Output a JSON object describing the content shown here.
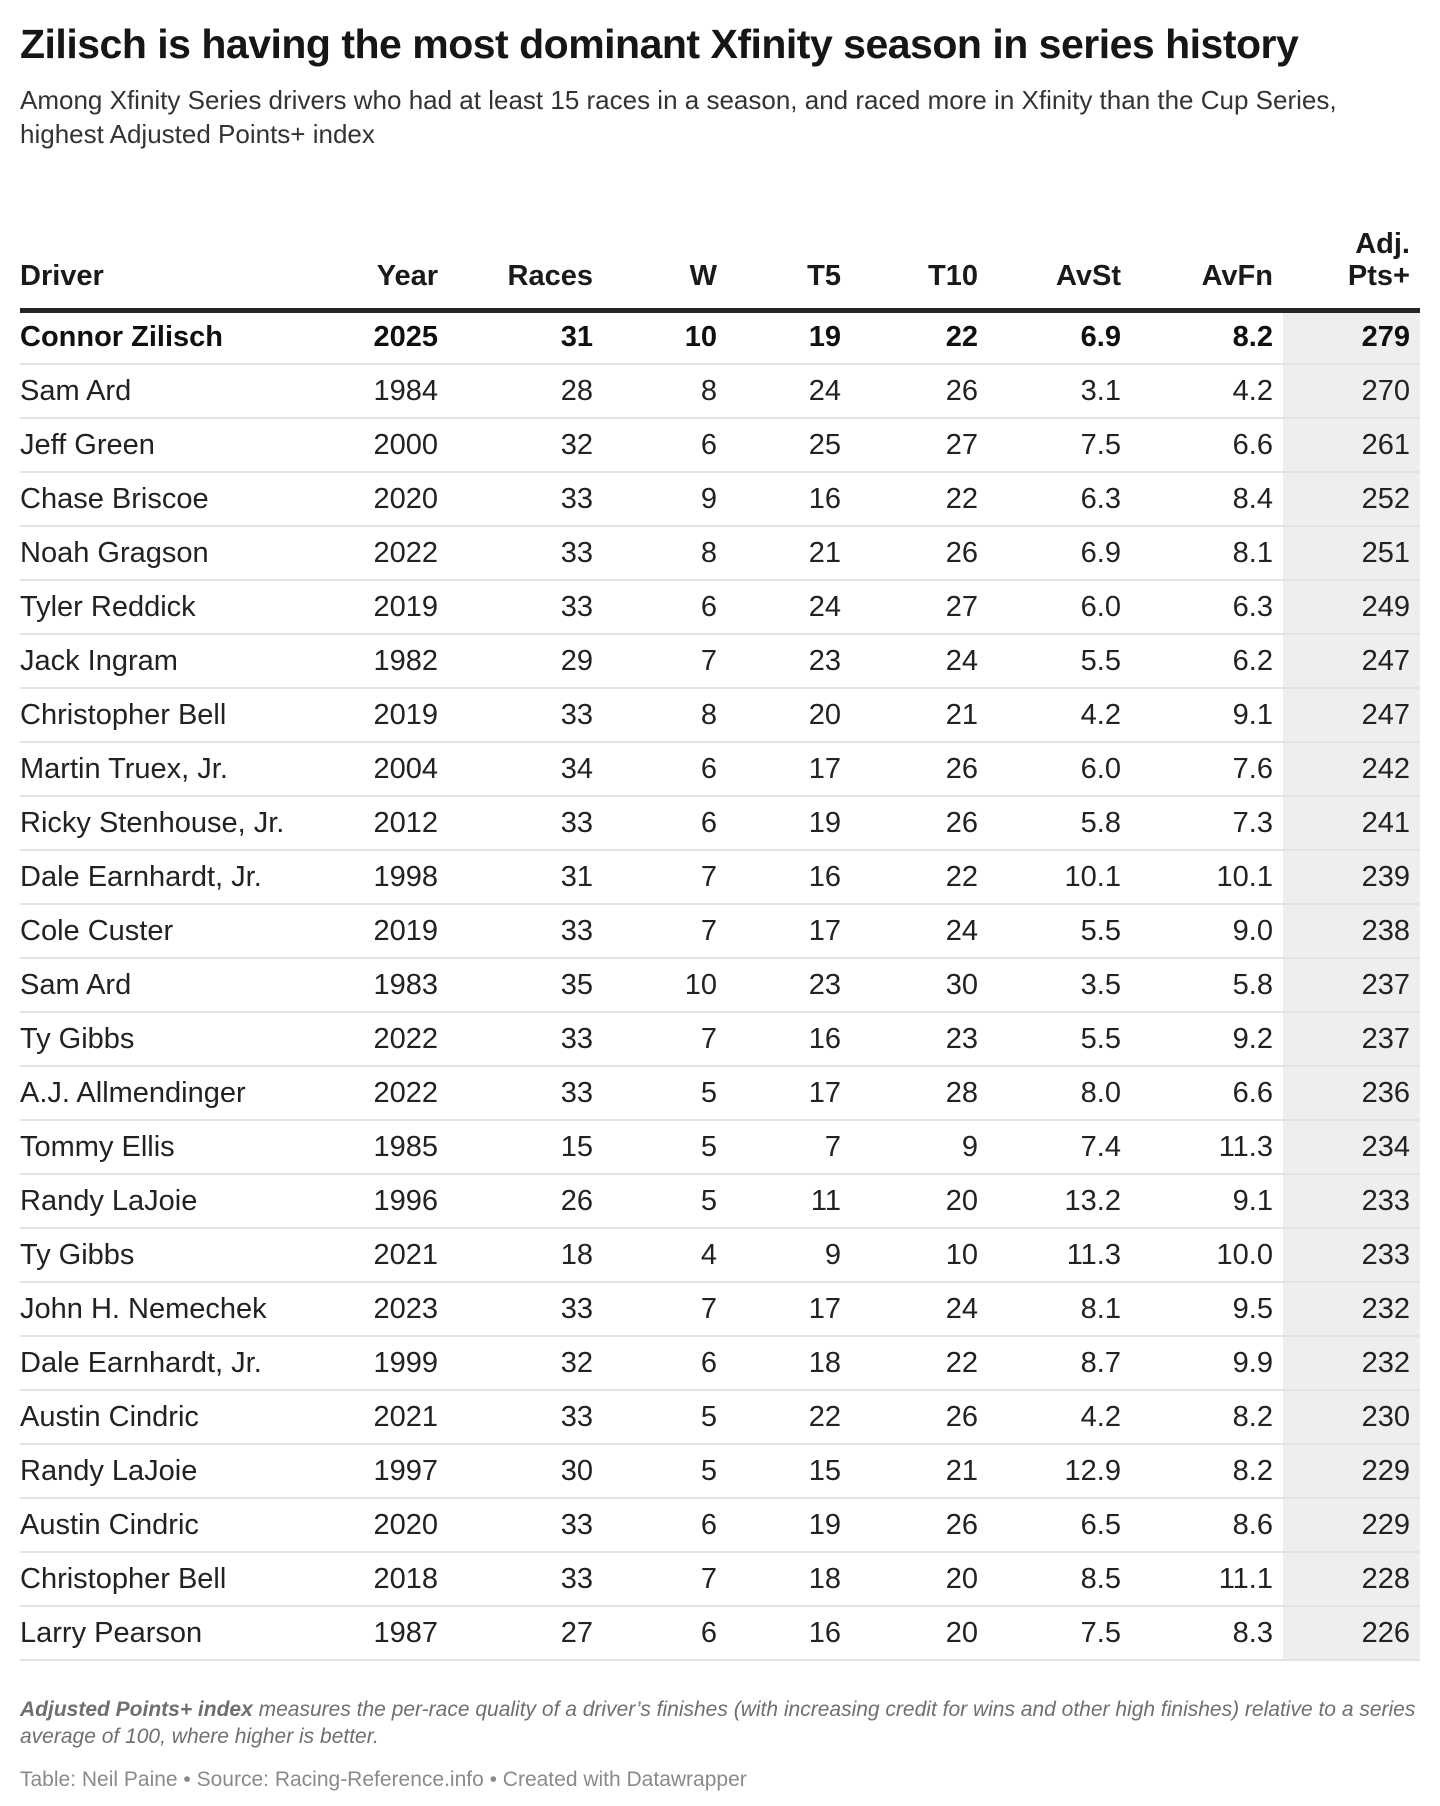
{
  "header": {
    "title": "Zilisch is having the most dominant Xfinity season in series history",
    "subtitle": "Among Xfinity Series drivers who had at least 15 races in a season, and raced more in Xfinity than the Cup Series, highest Adjusted Points+ index"
  },
  "chart_data": {
    "type": "table",
    "title": "Zilisch is having the most dominant Xfinity season in series history",
    "subtitle": "Among Xfinity Series drivers who had at least 15 races in a season, and raced more in Xfinity than the Cup Series, highest Adjusted Points+ index",
    "columns": [
      {
        "key": "driver",
        "label": "Driver",
        "align": "left",
        "highlight": false
      },
      {
        "key": "year",
        "label": "Year",
        "align": "right",
        "highlight": false
      },
      {
        "key": "races",
        "label": "Races",
        "align": "right",
        "highlight": false
      },
      {
        "key": "w",
        "label": "W",
        "align": "right",
        "highlight": false
      },
      {
        "key": "t5",
        "label": "T5",
        "align": "right",
        "highlight": false
      },
      {
        "key": "t10",
        "label": "T10",
        "align": "right",
        "highlight": false
      },
      {
        "key": "avst",
        "label": "AvSt",
        "align": "right",
        "highlight": false
      },
      {
        "key": "avfn",
        "label": "AvFn",
        "align": "right",
        "highlight": false
      },
      {
        "key": "adj",
        "label": "Adj.\nPts+",
        "align": "right",
        "highlight": true
      }
    ],
    "rows": [
      {
        "driver": "Connor Zilisch",
        "year": "2025",
        "races": "31",
        "w": "10",
        "t5": "19",
        "t10": "22",
        "avst": "6.9",
        "avfn": "8.2",
        "adj": "279",
        "emphasis": true
      },
      {
        "driver": "Sam Ard",
        "year": "1984",
        "races": "28",
        "w": "8",
        "t5": "24",
        "t10": "26",
        "avst": "3.1",
        "avfn": "4.2",
        "adj": "270",
        "emphasis": false
      },
      {
        "driver": "Jeff Green",
        "year": "2000",
        "races": "32",
        "w": "6",
        "t5": "25",
        "t10": "27",
        "avst": "7.5",
        "avfn": "6.6",
        "adj": "261",
        "emphasis": false
      },
      {
        "driver": "Chase Briscoe",
        "year": "2020",
        "races": "33",
        "w": "9",
        "t5": "16",
        "t10": "22",
        "avst": "6.3",
        "avfn": "8.4",
        "adj": "252",
        "emphasis": false
      },
      {
        "driver": "Noah Gragson",
        "year": "2022",
        "races": "33",
        "w": "8",
        "t5": "21",
        "t10": "26",
        "avst": "6.9",
        "avfn": "8.1",
        "adj": "251",
        "emphasis": false
      },
      {
        "driver": "Tyler Reddick",
        "year": "2019",
        "races": "33",
        "w": "6",
        "t5": "24",
        "t10": "27",
        "avst": "6.0",
        "avfn": "6.3",
        "adj": "249",
        "emphasis": false
      },
      {
        "driver": "Jack Ingram",
        "year": "1982",
        "races": "29",
        "w": "7",
        "t5": "23",
        "t10": "24",
        "avst": "5.5",
        "avfn": "6.2",
        "adj": "247",
        "emphasis": false
      },
      {
        "driver": "Christopher Bell",
        "year": "2019",
        "races": "33",
        "w": "8",
        "t5": "20",
        "t10": "21",
        "avst": "4.2",
        "avfn": "9.1",
        "adj": "247",
        "emphasis": false
      },
      {
        "driver": "Martin Truex, Jr.",
        "year": "2004",
        "races": "34",
        "w": "6",
        "t5": "17",
        "t10": "26",
        "avst": "6.0",
        "avfn": "7.6",
        "adj": "242",
        "emphasis": false
      },
      {
        "driver": "Ricky Stenhouse, Jr.",
        "year": "2012",
        "races": "33",
        "w": "6",
        "t5": "19",
        "t10": "26",
        "avst": "5.8",
        "avfn": "7.3",
        "adj": "241",
        "emphasis": false
      },
      {
        "driver": "Dale Earnhardt, Jr.",
        "year": "1998",
        "races": "31",
        "w": "7",
        "t5": "16",
        "t10": "22",
        "avst": "10.1",
        "avfn": "10.1",
        "adj": "239",
        "emphasis": false
      },
      {
        "driver": "Cole Custer",
        "year": "2019",
        "races": "33",
        "w": "7",
        "t5": "17",
        "t10": "24",
        "avst": "5.5",
        "avfn": "9.0",
        "adj": "238",
        "emphasis": false
      },
      {
        "driver": "Sam Ard",
        "year": "1983",
        "races": "35",
        "w": "10",
        "t5": "23",
        "t10": "30",
        "avst": "3.5",
        "avfn": "5.8",
        "adj": "237",
        "emphasis": false
      },
      {
        "driver": "Ty Gibbs",
        "year": "2022",
        "races": "33",
        "w": "7",
        "t5": "16",
        "t10": "23",
        "avst": "5.5",
        "avfn": "9.2",
        "adj": "237",
        "emphasis": false
      },
      {
        "driver": "A.J. Allmendinger",
        "year": "2022",
        "races": "33",
        "w": "5",
        "t5": "17",
        "t10": "28",
        "avst": "8.0",
        "avfn": "6.6",
        "adj": "236",
        "emphasis": false
      },
      {
        "driver": "Tommy Ellis",
        "year": "1985",
        "races": "15",
        "w": "5",
        "t5": "7",
        "t10": "9",
        "avst": "7.4",
        "avfn": "11.3",
        "adj": "234",
        "emphasis": false
      },
      {
        "driver": "Randy LaJoie",
        "year": "1996",
        "races": "26",
        "w": "5",
        "t5": "11",
        "t10": "20",
        "avst": "13.2",
        "avfn": "9.1",
        "adj": "233",
        "emphasis": false
      },
      {
        "driver": "Ty Gibbs",
        "year": "2021",
        "races": "18",
        "w": "4",
        "t5": "9",
        "t10": "10",
        "avst": "11.3",
        "avfn": "10.0",
        "adj": "233",
        "emphasis": false
      },
      {
        "driver": "John H. Nemechek",
        "year": "2023",
        "races": "33",
        "w": "7",
        "t5": "17",
        "t10": "24",
        "avst": "8.1",
        "avfn": "9.5",
        "adj": "232",
        "emphasis": false
      },
      {
        "driver": "Dale Earnhardt, Jr.",
        "year": "1999",
        "races": "32",
        "w": "6",
        "t5": "18",
        "t10": "22",
        "avst": "8.7",
        "avfn": "9.9",
        "adj": "232",
        "emphasis": false
      },
      {
        "driver": "Austin Cindric",
        "year": "2021",
        "races": "33",
        "w": "5",
        "t5": "22",
        "t10": "26",
        "avst": "4.2",
        "avfn": "8.2",
        "adj": "230",
        "emphasis": false
      },
      {
        "driver": "Randy LaJoie",
        "year": "1997",
        "races": "30",
        "w": "5",
        "t5": "15",
        "t10": "21",
        "avst": "12.9",
        "avfn": "8.2",
        "adj": "229",
        "emphasis": false
      },
      {
        "driver": "Austin Cindric",
        "year": "2020",
        "races": "33",
        "w": "6",
        "t5": "19",
        "t10": "26",
        "avst": "6.5",
        "avfn": "8.6",
        "adj": "229",
        "emphasis": false
      },
      {
        "driver": "Christopher Bell",
        "year": "2018",
        "races": "33",
        "w": "7",
        "t5": "18",
        "t10": "20",
        "avst": "8.5",
        "avfn": "11.1",
        "adj": "228",
        "emphasis": false
      },
      {
        "driver": "Larry Pearson",
        "year": "1987",
        "races": "27",
        "w": "6",
        "t5": "16",
        "t10": "20",
        "avst": "7.5",
        "avfn": "8.3",
        "adj": "226",
        "emphasis": false
      }
    ],
    "layout_hints": {
      "highlight_column": "adj",
      "emphasized_row": "Connor Zilisch 2025",
      "grid": "horizontal-rules-only"
    }
  },
  "footer": {
    "note_lead": "Adjusted Points+ index",
    "note_rest": " measures the per-race quality of a driver’s finishes (with increasing credit for wins and other high finishes) relative to a series average of 100, where higher is better.",
    "attribution": "Table: Neil Paine • Source: Racing-Reference.info • Created with Datawrapper"
  },
  "colors": {
    "highlight_column_bg": "#eeeeee",
    "header_rule": "#252525",
    "row_separator": "#e3e3e3",
    "title_text": "#161616",
    "body_text": "#222222",
    "note_text": "#6f6f6f",
    "attribution_text": "#8a8a8a"
  }
}
